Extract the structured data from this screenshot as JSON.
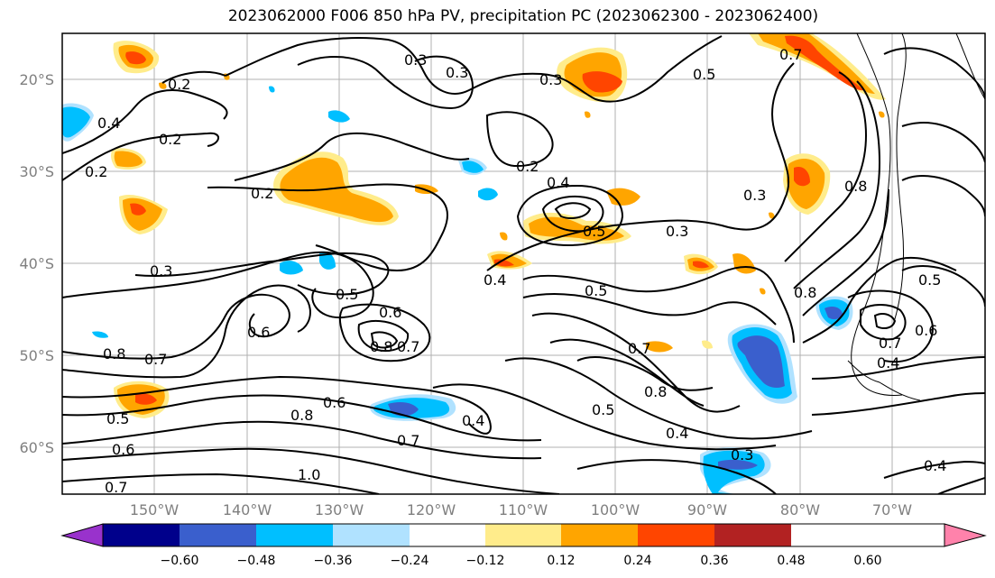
{
  "title": "2023062000 F006 850 hPa PV, precipitation PC (2023062300 - 2023062400)",
  "lat_labels": [
    "20°S",
    "30°S",
    "40°S",
    "50°S",
    "60°S"
  ],
  "lon_labels": [
    "150°W",
    "140°W",
    "130°W",
    "120°W",
    "110°W",
    "100°W",
    "90°W",
    "80°W",
    "70°W"
  ],
  "colorbar": {
    "tick_labels": [
      "−0.60",
      "−0.48",
      "−0.36",
      "−0.24",
      "−0.12",
      "0.12",
      "0.24",
      "0.36",
      "0.48",
      "0.60"
    ],
    "colors": [
      "#9932cc",
      "#00008b",
      "#3a5fcd",
      "#00bfff",
      "#b0e2ff",
      "#ffffff",
      "#ffec8b",
      "#ffa500",
      "#ff4500",
      "#b22222",
      "#ff82ab"
    ]
  },
  "contour_labels": [
    "0.2",
    "0.3",
    "0.4",
    "0.5",
    "0.6",
    "0.7",
    "0.8",
    "1.0"
  ],
  "map": {
    "lon_range": [
      -160,
      -63
    ],
    "lat_range": [
      -65,
      -15
    ],
    "pv_contour_levels": [
      0.2,
      0.3,
      0.4,
      0.5,
      0.6,
      0.7,
      0.8,
      1.0
    ],
    "shading": "precipitation PC"
  }
}
